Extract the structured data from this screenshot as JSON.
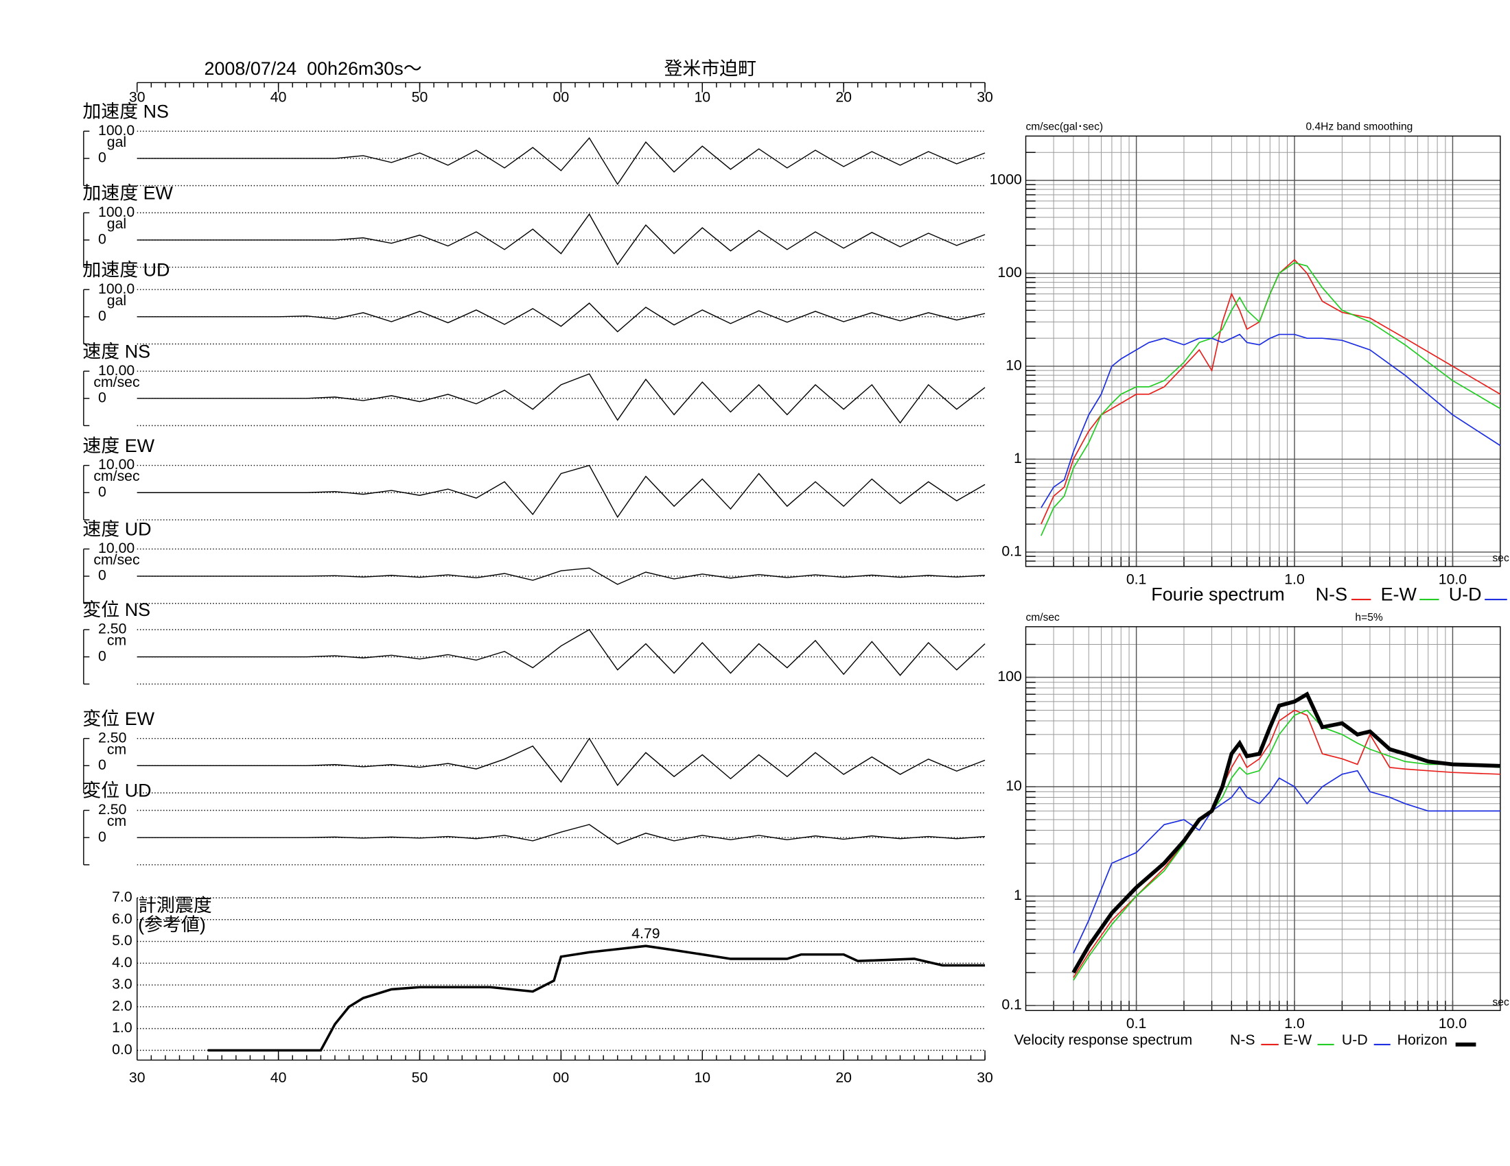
{
  "chart_data": [
    {
      "type": "waveform",
      "title": "2008/07/24  00h26m30s〜",
      "subtitle": "登米市迫町",
      "xlim": [
        0,
        60
      ],
      "xticks": [
        {
          "value": 0,
          "label": "30"
        },
        {
          "value": 10,
          "label": "40"
        },
        {
          "value": 20,
          "label": "50"
        },
        {
          "value": 30,
          "label": "00"
        },
        {
          "value": 40,
          "label": "10"
        },
        {
          "value": 50,
          "label": "20"
        },
        {
          "value": 60,
          "label": "30"
        }
      ],
      "x": [
        0,
        2,
        4,
        6,
        8,
        10,
        12,
        14,
        16,
        18,
        20,
        22,
        24,
        26,
        28,
        30,
        32,
        34,
        36,
        38,
        40,
        42,
        44,
        46,
        48,
        50,
        52,
        54,
        56,
        58,
        60
      ],
      "panels": [
        {
          "name": "加速度 NS",
          "ylabel": "gal",
          "ylim": [
            -100,
            100
          ],
          "yticks": [
            0,
            {
              "value": 100,
              "label": "100.0"
            }
          ],
          "values": [
            0,
            0,
            0,
            0,
            0,
            0,
            0,
            0,
            10,
            -15,
            20,
            -25,
            30,
            -35,
            40,
            -45,
            75,
            -95,
            60,
            -50,
            45,
            -40,
            35,
            -35,
            30,
            -30,
            25,
            -25,
            25,
            -20,
            20
          ]
        },
        {
          "name": "加速度 EW",
          "ylabel": "gal",
          "ylim": [
            -100,
            100
          ],
          "yticks": [
            0,
            {
              "value": 100,
              "label": "100.0"
            }
          ],
          "values": [
            0,
            0,
            0,
            0,
            0,
            0,
            0,
            0,
            8,
            -12,
            18,
            -22,
            30,
            -35,
            40,
            -50,
            95,
            -90,
            55,
            -50,
            45,
            -40,
            35,
            -35,
            30,
            -30,
            28,
            -25,
            25,
            -20,
            20
          ]
        },
        {
          "name": "加速度 UD",
          "ylabel": "gal",
          "ylim": [
            -100,
            100
          ],
          "yticks": [
            0,
            {
              "value": 100,
              "label": "100.0"
            }
          ],
          "values": [
            0,
            0,
            0,
            0,
            0,
            0,
            3,
            -8,
            15,
            -18,
            20,
            -22,
            25,
            -28,
            30,
            -35,
            50,
            -55,
            35,
            -30,
            25,
            -25,
            22,
            -20,
            20,
            -18,
            15,
            -15,
            15,
            -12,
            12
          ]
        },
        {
          "name": "速度 NS",
          "ylabel": "cm/sec",
          "ylim": [
            -10,
            10
          ],
          "yticks": [
            0,
            {
              "value": 10,
              "label": "10.00"
            }
          ],
          "values": [
            0,
            0,
            0,
            0,
            0,
            0,
            0,
            0.5,
            -0.8,
            1,
            -1.2,
            1.5,
            -2,
            3,
            -4,
            5,
            9,
            -8,
            7,
            -6,
            6,
            -5,
            5,
            -6,
            5,
            -4,
            5,
            -9,
            5,
            -4,
            4
          ]
        },
        {
          "name": "速度 EW",
          "ylabel": "cm/sec",
          "ylim": [
            -10,
            10
          ],
          "yticks": [
            0,
            {
              "value": 10,
              "label": "10.00"
            }
          ],
          "values": [
            0,
            0,
            0,
            0,
            0,
            0,
            0,
            0.4,
            -0.6,
            0.8,
            -1,
            1.3,
            -2,
            4,
            -8,
            7,
            10,
            -9,
            6,
            -5,
            5,
            -6,
            7,
            -5,
            4,
            -5,
            5,
            -4,
            4,
            -3,
            3
          ]
        },
        {
          "name": "速度 UD",
          "ylabel": "cm/sec",
          "ylim": [
            -10,
            10
          ],
          "yticks": [
            0,
            {
              "value": 10,
              "label": "10.00"
            }
          ],
          "values": [
            0,
            0,
            0,
            0,
            0,
            0,
            0,
            0.2,
            -0.3,
            0.3,
            -0.4,
            0.5,
            -0.6,
            1,
            -1.5,
            2,
            3,
            -3,
            1.5,
            -1,
            0.8,
            -0.7,
            0.6,
            -0.5,
            0.5,
            -0.4,
            0.4,
            -0.4,
            0.3,
            -0.3,
            0.3
          ]
        },
        {
          "name": "変位 NS",
          "ylabel": "cm",
          "ylim": [
            -2.5,
            2.5
          ],
          "yticks": [
            0,
            {
              "value": 2.5,
              "label": "2.50"
            }
          ],
          "values": [
            0,
            0,
            0,
            0,
            0,
            0,
            0,
            0.1,
            -0.1,
            0.15,
            -0.2,
            0.2,
            -0.3,
            0.5,
            -1,
            1,
            2.5,
            -1.2,
            1.2,
            -1.5,
            1.3,
            -1.5,
            1.2,
            -1,
            1.5,
            -1.6,
            1.4,
            -1.7,
            1.3,
            -1.2,
            1.2
          ]
        },
        {
          "name": "変位 EW",
          "ylabel": "cm",
          "ylim": [
            -2.5,
            2.5
          ],
          "yticks": [
            0,
            {
              "value": 2.5,
              "label": "2.50"
            }
          ],
          "values": [
            0,
            0,
            0,
            0,
            0,
            0,
            0,
            0.1,
            -0.1,
            0.1,
            -0.15,
            0.2,
            -0.3,
            0.6,
            1.8,
            -1.5,
            2.5,
            -1.8,
            1.2,
            -1,
            1,
            -1.2,
            1,
            -1,
            1.2,
            -0.8,
            0.8,
            -0.8,
            0.6,
            -0.5,
            0.5
          ]
        },
        {
          "name": "変位 UD",
          "ylabel": "cm",
          "ylim": [
            -2.5,
            2.5
          ],
          "yticks": [
            0,
            {
              "value": 2.5,
              "label": "2.50"
            }
          ],
          "values": [
            0,
            0,
            0,
            0,
            0,
            0,
            0,
            0.05,
            -0.05,
            0.05,
            -0.05,
            0.1,
            -0.1,
            0.2,
            -0.3,
            0.5,
            1.2,
            -0.6,
            0.4,
            -0.3,
            0.2,
            -0.2,
            0.2,
            -0.2,
            0.15,
            -0.15,
            0.15,
            -0.1,
            0.1,
            -0.1,
            0.1
          ]
        }
      ]
    },
    {
      "type": "line",
      "title": "計測震度",
      "subtitle": "(参考値)",
      "ylim": [
        0,
        7
      ],
      "yticks": [
        {
          "value": 0,
          "label": "0.0"
        },
        {
          "value": 1,
          "label": "1.0"
        },
        {
          "value": 2,
          "label": "2.0"
        },
        {
          "value": 3,
          "label": "3.0"
        },
        {
          "value": 4,
          "label": "4.0"
        },
        {
          "value": 5,
          "label": "5.0"
        },
        {
          "value": 6,
          "label": "6.0"
        },
        {
          "value": 7,
          "label": "7.0"
        }
      ],
      "grid": true,
      "x": [
        5,
        13,
        14,
        15,
        16,
        18,
        20,
        25,
        28,
        29.5,
        30,
        32,
        36,
        38,
        42,
        46,
        47,
        50,
        51,
        55,
        57,
        60
      ],
      "values": [
        0,
        0,
        1.2,
        2.0,
        2.4,
        2.8,
        2.9,
        2.9,
        2.7,
        3.2,
        4.3,
        4.5,
        4.79,
        4.6,
        4.2,
        4.2,
        4.4,
        4.4,
        4.1,
        4.2,
        3.9,
        3.9
      ],
      "annotation": {
        "x": 36,
        "y": 4.79
      }
    },
    {
      "type": "logline",
      "title": "Fourie spectrum",
      "ylabel": "cm/sec(gal･sec)",
      "note": "0.4Hz band smoothing",
      "xlabel": "sec",
      "xlim": [
        0.02,
        20
      ],
      "ylim": [
        0.07,
        3000
      ],
      "log": true,
      "grid": true,
      "xticks": [
        0.1,
        {
          "value": 1,
          "label": "1.0"
        },
        {
          "value": 10,
          "label": "10.0"
        }
      ],
      "yticks": [
        0.1,
        1,
        10,
        100,
        1000
      ],
      "x": [
        0.025,
        0.03,
        0.035,
        0.04,
        0.05,
        0.06,
        0.07,
        0.08,
        0.1,
        0.12,
        0.15,
        0.2,
        0.25,
        0.3,
        0.35,
        0.4,
        0.45,
        0.5,
        0.6,
        0.7,
        0.8,
        1.0,
        1.2,
        1.5,
        2,
        3,
        5,
        10,
        20
      ],
      "series": [
        {
          "name": "N-S",
          "color": "#e8201c",
          "values": [
            0.2,
            0.4,
            0.5,
            1,
            2,
            3,
            3.5,
            4,
            5,
            5,
            6,
            10,
            15,
            9,
            30,
            60,
            40,
            25,
            30,
            60,
            100,
            140,
            100,
            50,
            38,
            33,
            20,
            10,
            5
          ]
        },
        {
          "name": "E-W",
          "color": "#22cc22",
          "values": [
            0.15,
            0.3,
            0.4,
            0.8,
            1.5,
            3,
            4,
            5,
            6,
            6,
            7,
            11,
            18,
            20,
            25,
            40,
            55,
            40,
            30,
            60,
            100,
            130,
            120,
            70,
            40,
            30,
            17,
            7,
            3.5
          ]
        },
        {
          "name": "U-D",
          "color": "#1c2ee0",
          "values": [
            0.3,
            0.5,
            0.6,
            1.2,
            3,
            5,
            10,
            12,
            15,
            18,
            20,
            17,
            20,
            20,
            18,
            20,
            22,
            18,
            17,
            20,
            22,
            22,
            20,
            20,
            19,
            15,
            8,
            3,
            1.4
          ]
        }
      ]
    },
    {
      "type": "logline",
      "title": "Velocity response spectrum",
      "ylabel": "cm/sec",
      "note": "h=5%",
      "xlabel": "sec",
      "xlim": [
        0.02,
        20
      ],
      "ylim": [
        0.09,
        290
      ],
      "log": true,
      "grid": true,
      "xticks": [
        0.1,
        {
          "value": 1,
          "label": "1.0"
        },
        {
          "value": 10,
          "label": "10.0"
        }
      ],
      "yticks": [
        0.1,
        1,
        10,
        100
      ],
      "x": [
        0.04,
        0.05,
        0.07,
        0.1,
        0.15,
        0.2,
        0.25,
        0.3,
        0.35,
        0.4,
        0.45,
        0.5,
        0.6,
        0.7,
        0.8,
        1.0,
        1.2,
        1.5,
        2,
        2.5,
        3,
        4,
        5,
        7,
        10,
        20
      ],
      "series": [
        {
          "name": "N-S",
          "color": "#e8201c",
          "values": [
            0.18,
            0.3,
            0.6,
            1.0,
            1.8,
            3,
            5,
            6,
            10,
            15,
            20,
            15,
            18,
            25,
            40,
            50,
            45,
            20,
            18,
            16,
            30,
            15,
            14.5,
            14,
            13.5,
            13
          ]
        },
        {
          "name": "E-W",
          "color": "#22cc22",
          "values": [
            0.17,
            0.28,
            0.55,
            1.0,
            1.7,
            3,
            5,
            6,
            8,
            12,
            15,
            13,
            14,
            20,
            30,
            45,
            50,
            35,
            30,
            25,
            22,
            19,
            17,
            16,
            16,
            15
          ]
        },
        {
          "name": "U-D",
          "color": "#1c2ee0",
          "values": [
            0.3,
            0.6,
            2.0,
            2.5,
            4.5,
            5,
            4,
            6,
            7,
            8,
            10,
            8,
            7,
            9,
            12,
            10,
            7,
            10,
            13,
            14,
            9,
            8,
            7,
            6,
            6,
            6
          ]
        },
        {
          "name": "Horizon",
          "color": "#000000",
          "values": [
            0.2,
            0.35,
            0.7,
            1.2,
            2,
            3.2,
            5,
            6,
            10,
            20,
            25,
            19,
            20,
            35,
            55,
            60,
            70,
            35,
            38,
            30,
            32,
            22,
            20,
            17,
            16,
            15.5
          ]
        }
      ]
    }
  ]
}
